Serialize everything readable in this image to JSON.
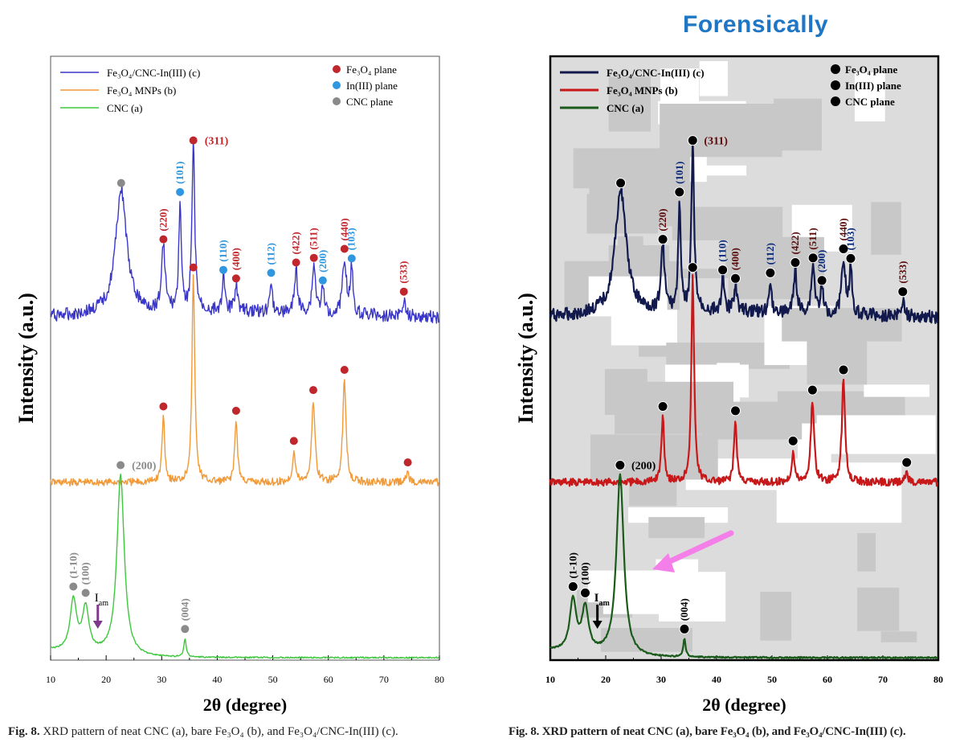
{
  "heading": "Forensically",
  "caption_left": {
    "prefix": "Fig. 8.",
    "text": "XRD pattern of neat CNC (a), bare Fe₃O₄ (b), and Fe₃O₄/CNC-In(III) (c)."
  },
  "caption_right": {
    "prefix": "Fig. 8.",
    "text": "XRD pattern of neat CNC (a), bare Fe₃O₄ (b), and Fe₃O₄/CNC-In(III) (c)."
  },
  "chart_data": [
    {
      "type": "line",
      "panel": "original",
      "xlabel": "2θ (degree)",
      "ylabel": "Intensity (a.u.)",
      "xlim": [
        10,
        80
      ],
      "x_ticks": [
        "10",
        "20",
        "30",
        "40",
        "50",
        "60",
        "70",
        "80"
      ],
      "grid": false,
      "legend_position": "top-left",
      "colors": {
        "c": "#3a36c9",
        "b": "#f19a3a",
        "a": "#3dc83d",
        "fe3o4": "#c0272d",
        "in": "#2f97e0",
        "cnc": "#8a8a8a",
        "arrow": "#7d3a8c"
      },
      "series": [
        {
          "name": "Fe₃O₄/CNC-In(III) (c)",
          "key": "c",
          "peaks": [
            {
              "x": 22.7,
              "h": 0.62,
              "w": 1.2
            },
            {
              "x": 30.3,
              "h": 0.32,
              "w": 0.4
            },
            {
              "x": 33.3,
              "h": 0.55,
              "w": 0.25
            },
            {
              "x": 35.7,
              "h": 0.82,
              "w": 0.3
            },
            {
              "x": 41.1,
              "h": 0.18,
              "w": 0.25
            },
            {
              "x": 43.4,
              "h": 0.14,
              "w": 0.3
            },
            {
              "x": 49.7,
              "h": 0.17,
              "w": 0.25
            },
            {
              "x": 54.2,
              "h": 0.22,
              "w": 0.3
            },
            {
              "x": 57.4,
              "h": 0.24,
              "w": 0.35
            },
            {
              "x": 59.0,
              "h": 0.12,
              "w": 0.3
            },
            {
              "x": 62.9,
              "h": 0.28,
              "w": 0.4
            },
            {
              "x": 64.2,
              "h": 0.22,
              "w": 0.3
            },
            {
              "x": 73.6,
              "h": 0.08,
              "w": 0.3
            }
          ]
        },
        {
          "name": "Fe₃O₄ MNPs (b)",
          "key": "b",
          "peaks": [
            {
              "x": 30.3,
              "h": 0.32,
              "w": 0.3
            },
            {
              "x": 35.7,
              "h": 1.0,
              "w": 0.3
            },
            {
              "x": 43.4,
              "h": 0.3,
              "w": 0.3
            },
            {
              "x": 53.8,
              "h": 0.15,
              "w": 0.3
            },
            {
              "x": 57.3,
              "h": 0.4,
              "w": 0.35
            },
            {
              "x": 62.9,
              "h": 0.5,
              "w": 0.35
            },
            {
              "x": 74.3,
              "h": 0.05,
              "w": 0.3
            }
          ]
        },
        {
          "name": "CNC (a)",
          "key": "a",
          "peaks": [
            {
              "x": 14.1,
              "h": 0.28,
              "w": 0.7
            },
            {
              "x": 16.3,
              "h": 0.24,
              "w": 0.7
            },
            {
              "x": 22.6,
              "h": 1.0,
              "w": 0.8
            },
            {
              "x": 34.2,
              "h": 0.1,
              "w": 0.25
            }
          ]
        }
      ],
      "markers": [
        {
          "series": "c",
          "type": "cnc",
          "x": 22.7,
          "label": ""
        },
        {
          "series": "c",
          "type": "fe3o4",
          "x": 30.3,
          "label": "(220)"
        },
        {
          "series": "c",
          "type": "in",
          "x": 33.3,
          "label": "(101)"
        },
        {
          "series": "c",
          "type": "fe3o4",
          "x": 35.7,
          "label": "(311)"
        },
        {
          "series": "c",
          "type": "in",
          "x": 41.1,
          "label": "(110)"
        },
        {
          "series": "c",
          "type": "fe3o4",
          "x": 43.4,
          "label": "(400)"
        },
        {
          "series": "c",
          "type": "in",
          "x": 49.7,
          "label": "(112)"
        },
        {
          "series": "c",
          "type": "fe3o4",
          "x": 54.2,
          "label": "(422)"
        },
        {
          "series": "c",
          "type": "fe3o4",
          "x": 57.4,
          "label": "(511)"
        },
        {
          "series": "c",
          "type": "in",
          "x": 59.0,
          "label": "(200)"
        },
        {
          "series": "c",
          "type": "fe3o4",
          "x": 62.9,
          "label": "(440)"
        },
        {
          "series": "c",
          "type": "in",
          "x": 64.2,
          "label": "(103)"
        },
        {
          "series": "c",
          "type": "fe3o4",
          "x": 73.6,
          "label": "(533)"
        },
        {
          "series": "b",
          "type": "fe3o4",
          "x": 30.3,
          "label": ""
        },
        {
          "series": "b",
          "type": "fe3o4",
          "x": 35.7,
          "label": ""
        },
        {
          "series": "b",
          "type": "fe3o4",
          "x": 43.4,
          "label": ""
        },
        {
          "series": "b",
          "type": "fe3o4",
          "x": 53.8,
          "label": ""
        },
        {
          "series": "b",
          "type": "fe3o4",
          "x": 57.3,
          "label": ""
        },
        {
          "series": "b",
          "type": "fe3o4",
          "x": 62.9,
          "label": ""
        },
        {
          "series": "b",
          "type": "fe3o4",
          "x": 74.3,
          "label": ""
        },
        {
          "series": "a",
          "type": "cnc",
          "x": 14.1,
          "label": "(1-10)"
        },
        {
          "series": "a",
          "type": "cnc",
          "x": 16.3,
          "label": "(100)"
        },
        {
          "series": "a",
          "type": "cnc",
          "x": 22.6,
          "label": "(200)"
        },
        {
          "series": "a",
          "type": "cnc",
          "x": 34.2,
          "label": "(004)"
        }
      ],
      "legend_markers": [
        {
          "type": "fe3o4",
          "label": "Fe₃O₄ plane"
        },
        {
          "type": "in",
          "label": "In(III) plane"
        },
        {
          "type": "cnc",
          "label": "CNC plane"
        }
      ],
      "annotations": [
        {
          "text": "I",
          "sub": "am",
          "x": 18.5,
          "series": "a",
          "kind": "arrow"
        }
      ]
    },
    {
      "type": "line",
      "panel": "forensic",
      "xlabel": "2θ (degree)",
      "ylabel": "Intensity (a.u.)",
      "xlim": [
        10,
        80
      ],
      "x_ticks": [
        "10",
        "20",
        "30",
        "40",
        "50",
        "60",
        "70",
        "80"
      ],
      "grid": false,
      "legend_position": "top-left",
      "colors": {
        "c": "#121a4d",
        "b": "#c8181a",
        "a": "#1a5a1a",
        "fe3o4": "#000000",
        "in": "#000000",
        "cnc": "#000000",
        "arrow": "#000000",
        "label_red": "#5a0a0a",
        "label_blue": "#0b2a7a",
        "pointer": "#f47fe8"
      },
      "series": [
        {
          "name": "Fe₃O₄/CNC-In(III) (c)",
          "key": "c"
        },
        {
          "name": "Fe₃O₄ MNPs (b)",
          "key": "b"
        },
        {
          "name": "CNC (a)",
          "key": "a"
        }
      ],
      "same_data_as_panel": 0
    }
  ]
}
